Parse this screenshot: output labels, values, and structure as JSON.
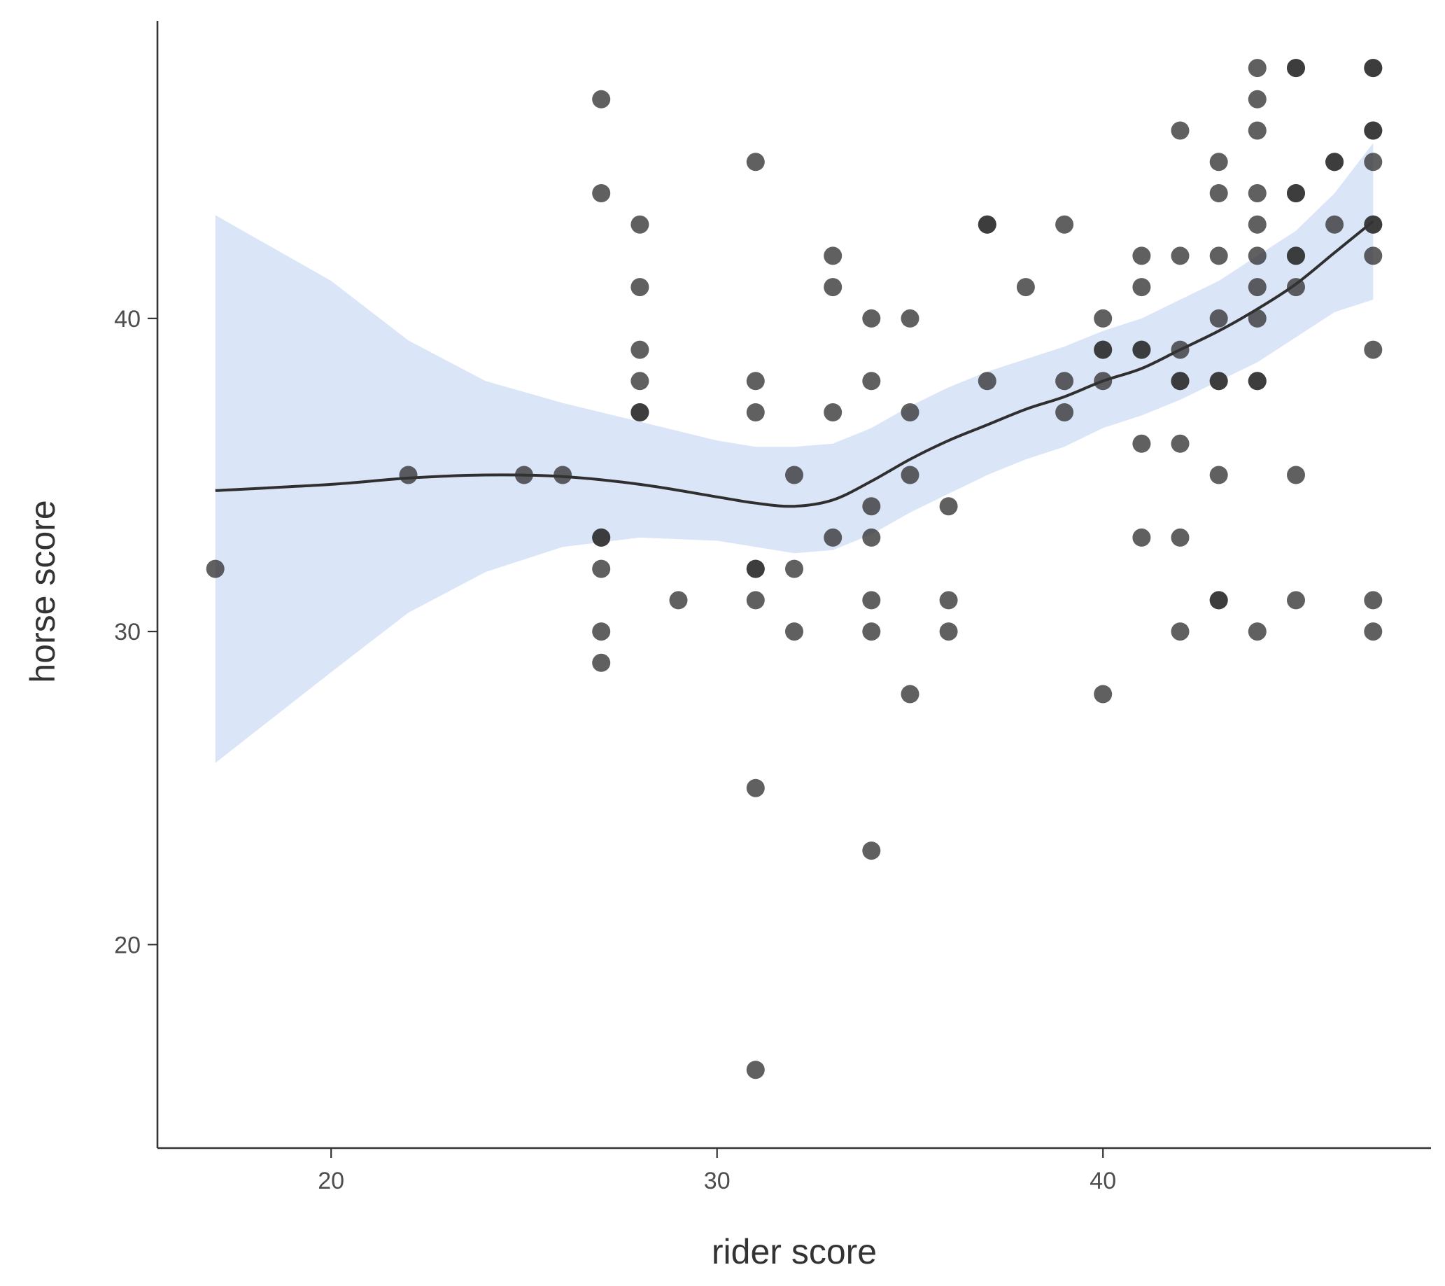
{
  "chart_data": {
    "type": "scatter",
    "title": "",
    "xlabel": "rider score",
    "ylabel": "horse score",
    "xlim": [
      15.5,
      48.5
    ],
    "ylim": [
      13.5,
      49.5
    ],
    "x_ticks": [
      20,
      30,
      40
    ],
    "y_ticks": [
      20,
      30,
      40
    ],
    "grid": false,
    "legend": "none",
    "colors": {
      "points": "#333333",
      "line": "#2f2f2f",
      "band": "#cfdcf5",
      "axis": "#333333"
    },
    "points": [
      [
        17,
        32
      ],
      [
        22,
        35
      ],
      [
        25,
        35
      ],
      [
        26,
        35
      ],
      [
        27,
        47
      ],
      [
        27,
        44
      ],
      [
        27,
        33
      ],
      [
        27,
        33
      ],
      [
        27,
        32
      ],
      [
        27,
        30
      ],
      [
        27,
        29
      ],
      [
        28,
        43
      ],
      [
        28,
        41
      ],
      [
        28,
        39
      ],
      [
        28,
        38
      ],
      [
        28,
        37
      ],
      [
        28,
        37
      ],
      [
        29,
        31
      ],
      [
        31,
        45
      ],
      [
        31,
        38
      ],
      [
        31,
        37
      ],
      [
        31,
        32
      ],
      [
        31,
        32
      ],
      [
        31,
        31
      ],
      [
        31,
        25
      ],
      [
        31,
        16
      ],
      [
        32,
        35
      ],
      [
        32,
        32
      ],
      [
        32,
        30
      ],
      [
        33,
        42
      ],
      [
        33,
        41
      ],
      [
        33,
        37
      ],
      [
        33,
        33
      ],
      [
        34,
        40
      ],
      [
        34,
        38
      ],
      [
        34,
        34
      ],
      [
        34,
        33
      ],
      [
        34,
        31
      ],
      [
        34,
        30
      ],
      [
        34,
        23
      ],
      [
        35,
        40
      ],
      [
        35,
        37
      ],
      [
        35,
        35
      ],
      [
        35,
        28
      ],
      [
        36,
        34
      ],
      [
        36,
        31
      ],
      [
        36,
        30
      ],
      [
        37,
        43
      ],
      [
        37,
        43
      ],
      [
        37,
        38
      ],
      [
        38,
        41
      ],
      [
        39,
        43
      ],
      [
        39,
        38
      ],
      [
        39,
        37
      ],
      [
        40,
        40
      ],
      [
        40,
        39
      ],
      [
        40,
        39
      ],
      [
        40,
        38
      ],
      [
        40,
        28
      ],
      [
        41,
        42
      ],
      [
        41,
        41
      ],
      [
        41,
        39
      ],
      [
        41,
        39
      ],
      [
        41,
        36
      ],
      [
        41,
        33
      ],
      [
        42,
        46
      ],
      [
        42,
        42
      ],
      [
        42,
        39
      ],
      [
        42,
        38
      ],
      [
        42,
        38
      ],
      [
        42,
        36
      ],
      [
        42,
        33
      ],
      [
        42,
        30
      ],
      [
        43,
        45
      ],
      [
        43,
        44
      ],
      [
        43,
        42
      ],
      [
        43,
        40
      ],
      [
        43,
        38
      ],
      [
        43,
        38
      ],
      [
        43,
        35
      ],
      [
        43,
        31
      ],
      [
        43,
        31
      ],
      [
        44,
        48
      ],
      [
        44,
        47
      ],
      [
        44,
        46
      ],
      [
        44,
        44
      ],
      [
        44,
        43
      ],
      [
        44,
        42
      ],
      [
        44,
        41
      ],
      [
        44,
        40
      ],
      [
        44,
        38
      ],
      [
        44,
        38
      ],
      [
        44,
        30
      ],
      [
        45,
        48
      ],
      [
        45,
        48
      ],
      [
        45,
        44
      ],
      [
        45,
        44
      ],
      [
        45,
        42
      ],
      [
        45,
        42
      ],
      [
        45,
        41
      ],
      [
        45,
        35
      ],
      [
        45,
        31
      ],
      [
        46,
        45
      ],
      [
        46,
        45
      ],
      [
        46,
        43
      ],
      [
        47,
        48
      ],
      [
        47,
        48
      ],
      [
        47,
        46
      ],
      [
        47,
        46
      ],
      [
        47,
        45
      ],
      [
        47,
        43
      ],
      [
        47,
        43
      ],
      [
        47,
        42
      ],
      [
        47,
        39
      ],
      [
        47,
        31
      ],
      [
        47,
        30
      ]
    ],
    "smooth": {
      "x": [
        17,
        20,
        22,
        24,
        26,
        28,
        30,
        31,
        32,
        33,
        34,
        35,
        36,
        37,
        38,
        39,
        40,
        41,
        42,
        43,
        44,
        45,
        46,
        47
      ],
      "y": [
        34.5,
        34.7,
        34.9,
        35.0,
        34.95,
        34.7,
        34.3,
        34.1,
        34.0,
        34.2,
        34.8,
        35.5,
        36.1,
        36.6,
        37.1,
        37.5,
        38.0,
        38.4,
        39.0,
        39.6,
        40.3,
        41.1,
        42.1,
        43.1
      ],
      "lower": [
        25.8,
        28.7,
        30.6,
        31.9,
        32.7,
        33.0,
        32.9,
        32.7,
        32.5,
        32.6,
        33.1,
        33.8,
        34.4,
        35.0,
        35.5,
        35.9,
        36.5,
        36.9,
        37.4,
        38.0,
        38.6,
        39.4,
        40.2,
        40.6
      ],
      "upper": [
        43.3,
        41.2,
        39.3,
        38.0,
        37.3,
        36.7,
        36.1,
        35.9,
        35.9,
        36.0,
        36.5,
        37.2,
        37.8,
        38.3,
        38.7,
        39.1,
        39.6,
        40.0,
        40.6,
        41.2,
        42.0,
        42.8,
        44.0,
        45.6
      ]
    }
  }
}
